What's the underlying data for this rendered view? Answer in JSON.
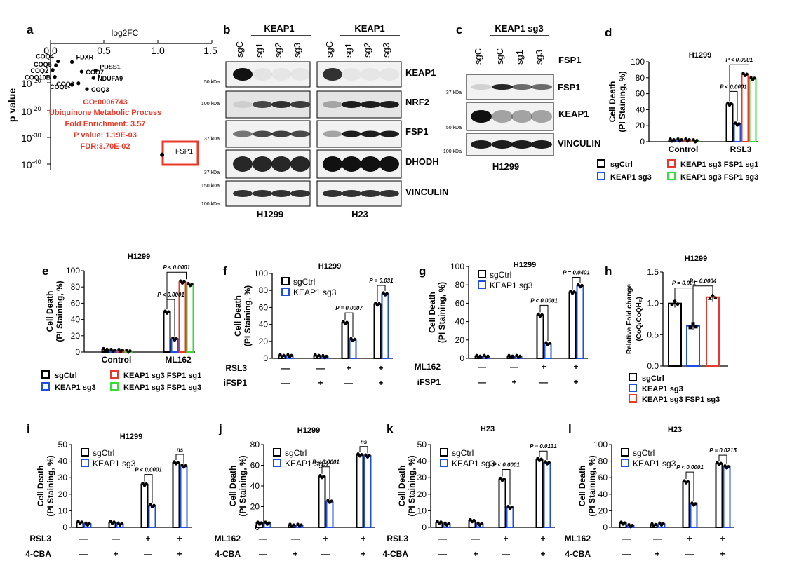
{
  "colors": {
    "black": "#000000",
    "blue": "#1f4fe0",
    "red": "#e83a2a",
    "green": "#33dd33",
    "blot": "#1a1a1a"
  },
  "panel_letters": {
    "a": "a",
    "b": "b",
    "c": "c",
    "d": "d",
    "e": "e",
    "f": "f",
    "g": "g",
    "h": "h",
    "i": "i",
    "j": "j",
    "k": "k",
    "l": "l"
  },
  "panel_a": {
    "xlabel": "log2FC",
    "ylabel": "p value",
    "xticks": [
      "0.0",
      "0.5",
      "1.0",
      "1.5"
    ],
    "yticks": [
      "10",
      "10",
      "10",
      "10"
    ],
    "yexp": [
      "-10",
      "-20",
      "-30",
      "-40"
    ],
    "genes": [
      {
        "name": "COQ4",
        "x": 0.07,
        "e": -2
      },
      {
        "name": "FDXR",
        "x": 0.2,
        "e": -2.2
      },
      {
        "name": "COQ5",
        "x": 0.05,
        "e": -3.4
      },
      {
        "name": "COQ2",
        "x": 0.02,
        "e": -5.2
      },
      {
        "name": "COQ7",
        "x": 0.29,
        "e": -5.8
      },
      {
        "name": "PDSS1",
        "x": 0.42,
        "e": -5.4
      },
      {
        "name": "COQ10B",
        "x": 0.04,
        "e": -7.8
      },
      {
        "name": "NDUFA9",
        "x": 0.4,
        "e": -8.2
      },
      {
        "name": "COQ6",
        "x": 0.26,
        "e": -10.2
      },
      {
        "name": "COQ9",
        "x": 0.2,
        "e": -10.8
      },
      {
        "name": "COQ3",
        "x": 0.34,
        "e": -12.4
      }
    ],
    "go_text": [
      "GO:0006743",
      "Ubiquinone Metabolic Process",
      "Fold Enrichment: 3.57",
      "P value: 1.19E-03",
      "FDR:3.70E-02"
    ],
    "fsp1_label": "FSP1",
    "fsp1_point": {
      "x": 1.04,
      "e": -37
    }
  },
  "panel_b": {
    "group": "KEAP1",
    "lanes_h1299": [
      "sgC",
      "sg1",
      "sg2",
      "sg3"
    ],
    "lanes_h23": [
      "sgC",
      "sg1",
      "sg2",
      "sg3"
    ],
    "rows": [
      "KEAP1",
      "NRF2",
      "FSP1",
      "DHODH",
      "VINCULIN"
    ],
    "markers": [
      "50 kDa",
      "100 kDa",
      "37 kDa",
      "37 kDa",
      "150 kDa",
      "100 kDa"
    ],
    "cell_lines": [
      "H1299",
      "H23"
    ]
  },
  "panel_c": {
    "group": "KEAP1 sg3",
    "lanes": [
      "sgC",
      "sgC",
      "sg1",
      "sg3"
    ],
    "fsp1_header": "FSP1",
    "rows": [
      "FSP1",
      "KEAP1",
      "VINCULIN"
    ],
    "markers": [
      "37 kDa",
      "50 kDa",
      "100 kDa"
    ],
    "cell_line": "H1299"
  },
  "legend_labels": {
    "sgCtrl": "sgCtrl",
    "keap1": "KEAP1 sg3",
    "fsp1sg1": "KEAP1 sg3 FSP1 sg1",
    "fsp1sg3": "KEAP1 sg3 FSP1 sg3"
  },
  "chart_data": [
    {
      "panel": "d",
      "type": "bar",
      "title": "H1299",
      "ylabel": "Cell Death (PI Staining, %)",
      "ylim": [
        0,
        100
      ],
      "yticks": [
        0,
        20,
        40,
        60,
        80,
        100
      ],
      "categories": [
        "Control",
        "RSL3"
      ],
      "series": [
        {
          "name": "sgCtrl",
          "values": [
            2,
            47
          ]
        },
        {
          "name": "KEAP1 sg3",
          "values": [
            2,
            22
          ]
        },
        {
          "name": "KEAP1 sg3 FSP1 sg1",
          "values": [
            2,
            84
          ]
        },
        {
          "name": "KEAP1 sg3 FSP1 sg3",
          "values": [
            1,
            79
          ]
        }
      ],
      "annotations": [
        "P < 0.0001",
        "P < 0.0001"
      ]
    },
    {
      "panel": "e",
      "type": "bar",
      "title": "H1299",
      "ylabel": "Cell Death (PI Staining, %)",
      "ylim": [
        0,
        100
      ],
      "yticks": [
        0,
        20,
        40,
        60,
        80,
        100
      ],
      "categories": [
        "Control",
        "ML162"
      ],
      "series": [
        {
          "name": "sgCtrl",
          "values": [
            3,
            49
          ]
        },
        {
          "name": "KEAP1 sg3",
          "values": [
            2,
            16
          ]
        },
        {
          "name": "KEAP1 sg3 FSP1 sg1",
          "values": [
            2,
            86
          ]
        },
        {
          "name": "KEAP1 sg3 FSP1 sg3",
          "values": [
            1,
            83
          ]
        }
      ],
      "annotations": [
        "P < 0.0001",
        "P < 0.0001"
      ]
    },
    {
      "panel": "f",
      "type": "bar",
      "title": "H1299",
      "ylabel": "Cell Death (PI Staining, %)",
      "ylim": [
        0,
        100
      ],
      "yticks": [
        0,
        20,
        40,
        60,
        80,
        100
      ],
      "treat_rows": [
        {
          "label": "RSL3",
          "marks": [
            "—",
            "—",
            "+",
            "+"
          ]
        },
        {
          "label": "iFSP1",
          "marks": [
            "—",
            "+",
            "—",
            "+"
          ]
        }
      ],
      "series": [
        {
          "name": "sgCtrl",
          "values": [
            3,
            3,
            42,
            64
          ]
        },
        {
          "name": "KEAP1 sg3",
          "values": [
            3,
            2,
            22,
            76
          ]
        }
      ],
      "annotations": [
        "P = 0.0007",
        "P = 0.031"
      ]
    },
    {
      "panel": "g",
      "type": "bar",
      "title": "H1299",
      "ylabel": "Cell Death (PI Staining, %)",
      "ylim": [
        0,
        100
      ],
      "yticks": [
        0,
        20,
        40,
        60,
        80,
        100
      ],
      "treat_rows": [
        {
          "label": "ML162",
          "marks": [
            "—",
            "—",
            "+",
            "+"
          ]
        },
        {
          "label": "iFSP1",
          "marks": [
            "—",
            "+",
            "—",
            "+"
          ]
        }
      ],
      "series": [
        {
          "name": "sgCtrl",
          "values": [
            2,
            2,
            47,
            72
          ]
        },
        {
          "name": "KEAP1 sg3",
          "values": [
            2,
            2,
            16,
            79
          ]
        }
      ],
      "annotations": [
        "P < 0.0001",
        "P = 0.0401"
      ]
    },
    {
      "panel": "h",
      "type": "bar",
      "title": "H1299",
      "ylabel": "Relative Fold change (CoQ/CoQH₂)",
      "ylim": [
        0,
        1.5
      ],
      "yticks": [
        0.0,
        0.5,
        1.0,
        1.5
      ],
      "series": [
        {
          "name": "sgCtrl",
          "values": [
            1.0
          ]
        },
        {
          "name": "KEAP1 sg3",
          "values": [
            0.64
          ]
        },
        {
          "name": "KEAP1 sg3 FSP1 sg3",
          "values": [
            1.1
          ]
        }
      ],
      "annotations": [
        "P = 0.001",
        "P = 0.0004"
      ]
    },
    {
      "panel": "i",
      "type": "bar",
      "title": "H1299",
      "ylabel": "Cell Death (PI Staining, %)",
      "ylim": [
        0,
        50
      ],
      "yticks": [
        0,
        10,
        20,
        30,
        40,
        50
      ],
      "treat_rows": [
        {
          "label": "RSL3",
          "marks": [
            "—",
            "—",
            "+",
            "+"
          ]
        },
        {
          "label": "4-CBA",
          "marks": [
            "—",
            "+",
            "—",
            "+"
          ]
        }
      ],
      "series": [
        {
          "name": "sgCtrl",
          "values": [
            3,
            3,
            26,
            39
          ]
        },
        {
          "name": "KEAP1 sg3",
          "values": [
            2,
            2,
            13,
            37
          ]
        }
      ],
      "annotations": [
        "P < 0.0001",
        "ns"
      ]
    },
    {
      "panel": "j",
      "type": "bar",
      "title": "H1299",
      "ylabel": "Cell Death (PI Staining, %)",
      "ylim": [
        0,
        80
      ],
      "yticks": [
        0,
        20,
        40,
        60,
        80
      ],
      "treat_rows": [
        {
          "label": "ML162",
          "marks": [
            "—",
            "—",
            "+",
            "+"
          ]
        },
        {
          "label": "4-CBA",
          "marks": [
            "—",
            "+",
            "—",
            "+"
          ]
        }
      ],
      "series": [
        {
          "name": "sgCtrl",
          "values": [
            4,
            2,
            49,
            70
          ]
        },
        {
          "name": "KEAP1 sg3",
          "values": [
            4,
            2,
            25,
            69
          ]
        }
      ],
      "annotations": [
        "P < 0.0001",
        "ns"
      ]
    },
    {
      "panel": "k",
      "type": "bar",
      "title": "H23",
      "ylabel": "Cell Death (PI Staining, %)",
      "ylim": [
        0,
        50
      ],
      "yticks": [
        0,
        10,
        20,
        30,
        40,
        50
      ],
      "treat_rows": [
        {
          "label": "RSL3",
          "marks": [
            "—",
            "—",
            "+",
            "+"
          ]
        },
        {
          "label": "4-CBA",
          "marks": [
            "—",
            "+",
            "—",
            "+"
          ]
        }
      ],
      "series": [
        {
          "name": "sgCtrl",
          "values": [
            3,
            4,
            29,
            41
          ]
        },
        {
          "name": "KEAP1 sg3",
          "values": [
            2,
            2,
            12,
            39
          ]
        }
      ],
      "annotations": [
        "P < 0.0001",
        "P = 0.0131"
      ]
    },
    {
      "panel": "l",
      "type": "bar",
      "title": "H23",
      "ylabel": "Cell Death (PI Staining, %)",
      "ylim": [
        0,
        100
      ],
      "yticks": [
        0,
        20,
        40,
        60,
        80,
        100
      ],
      "treat_rows": [
        {
          "label": "ML162",
          "marks": [
            "—",
            "—",
            "+",
            "+"
          ]
        },
        {
          "label": "4-CBA",
          "marks": [
            "—",
            "+",
            "—",
            "+"
          ]
        }
      ],
      "series": [
        {
          "name": "sgCtrl",
          "values": [
            5,
            3,
            55,
            77
          ]
        },
        {
          "name": "KEAP1 sg3",
          "values": [
            2,
            4,
            28,
            73
          ]
        }
      ],
      "annotations": [
        "P < 0.0001",
        "P = 0.0215"
      ]
    }
  ]
}
